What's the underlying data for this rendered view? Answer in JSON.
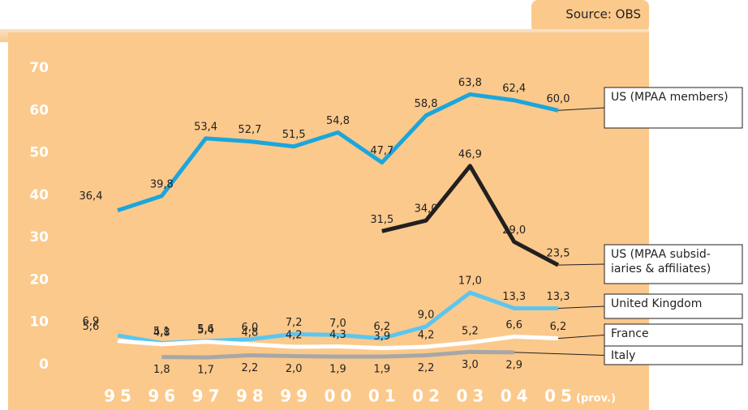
{
  "chart_data": {
    "type": "line",
    "source": "Source: OBS",
    "x_note": "(prov.)",
    "categories": [
      "95",
      "96",
      "97",
      "98",
      "99",
      "00",
      "01",
      "02",
      "03",
      "04",
      "05"
    ],
    "ylim": [
      0,
      70
    ],
    "yticks": [
      0,
      10,
      20,
      30,
      40,
      50,
      60,
      70
    ],
    "series": [
      {
        "name": "US (MPAA members)",
        "color": "#1ba6dc",
        "values": [
          36.4,
          39.8,
          53.4,
          52.7,
          51.5,
          54.8,
          47.7,
          58.8,
          63.8,
          62.4,
          60.0
        ],
        "value_labels": [
          "36,4",
          "39,8",
          "53,4",
          "52,7",
          "51,5",
          "54,8",
          "47,7",
          "58,8",
          "63,8",
          "62,4",
          "60,0"
        ]
      },
      {
        "name": "US (MPAA subsid-iaries & affiliates)",
        "color": "#231f20",
        "values": [
          null,
          null,
          null,
          null,
          null,
          null,
          31.5,
          34.0,
          46.9,
          29.0,
          23.5
        ],
        "value_labels": [
          null,
          null,
          null,
          null,
          null,
          null,
          "31,5",
          "34,0",
          "46,9",
          "29,0",
          "23,5"
        ]
      },
      {
        "name": "United Kingdom",
        "color": "#5cc6ef",
        "values": [
          6.9,
          5.1,
          5.6,
          6.0,
          7.2,
          7.0,
          6.2,
          9.0,
          17.0,
          13.3,
          13.3
        ],
        "value_labels": [
          "6,9",
          "5,1",
          "5,6",
          "6,0",
          "7,2",
          "7,0",
          "6,2",
          "9,0",
          "17,0",
          "13,3",
          "13,3"
        ]
      },
      {
        "name": "France",
        "color": "#ffffff",
        "values": [
          5.6,
          4.8,
          5.4,
          4.8,
          4.2,
          4.3,
          3.9,
          4.2,
          5.2,
          6.6,
          6.2
        ],
        "value_labels": [
          "5,6",
          "4,8",
          "5,4",
          "4,8",
          "4,2",
          "4,3",
          "3,9",
          "4,2",
          "5,2",
          "6,6",
          "6,2"
        ]
      },
      {
        "name": "Italy",
        "color": "#a7a7a7",
        "values": [
          null,
          1.8,
          1.7,
          2.2,
          2.0,
          1.9,
          1.9,
          2.2,
          3.0,
          2.9,
          null
        ],
        "value_labels": [
          null,
          "1,8",
          "1,7",
          "2,2",
          "2,0",
          "1,9",
          "1,9",
          "2,2",
          "3,0",
          "2,9",
          null
        ]
      }
    ]
  }
}
